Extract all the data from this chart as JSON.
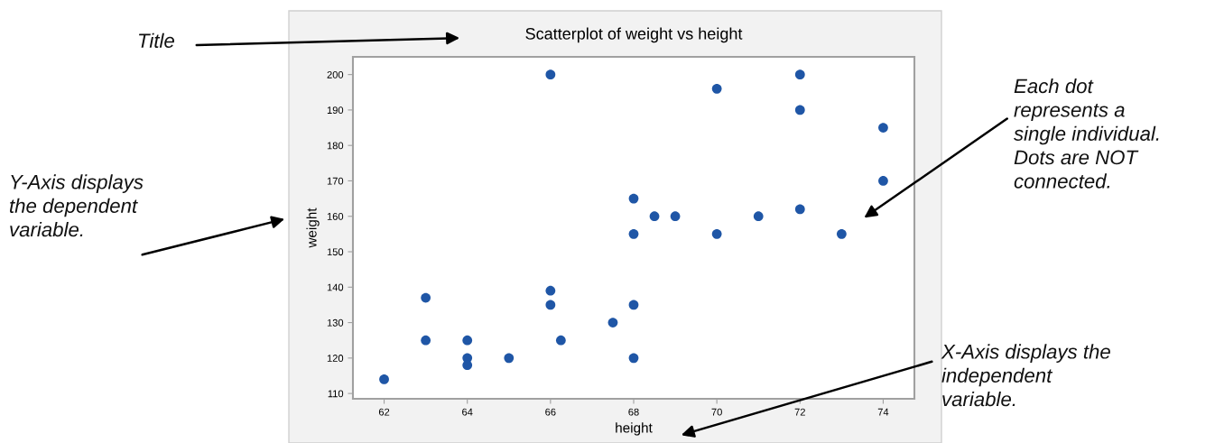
{
  "chart_data": {
    "type": "scatter",
    "title": "Scatterplot of weight vs height",
    "xlabel": "height",
    "ylabel": "weight",
    "series": [
      {
        "color": "#1f56a6",
        "x": [
          62,
          63,
          63,
          64,
          64,
          64,
          65,
          66,
          66,
          66,
          66.25,
          67.5,
          68,
          68,
          68,
          68,
          68.5,
          69,
          70,
          70,
          71,
          72,
          72,
          72,
          73,
          74,
          74
        ],
        "values": [
          114,
          137,
          125,
          125,
          120,
          118,
          120,
          200,
          139,
          135,
          125,
          130,
          165,
          155,
          135,
          120,
          160,
          160,
          196,
          155,
          160,
          200,
          190,
          162,
          155,
          185,
          170
        ]
      }
    ],
    "xlim": [
      61.25,
      74.75
    ],
    "ylim": [
      108.5,
      205
    ],
    "xticks": [
      62,
      64,
      66,
      68,
      70,
      72,
      74
    ],
    "yticks": [
      110,
      120,
      130,
      140,
      150,
      160,
      170,
      180,
      190,
      200
    ],
    "grid": false,
    "marker": "circle",
    "annotations": [
      "Title",
      "Y-Axis displays\nthe dependent\nvariable.",
      "Each dot\nrepresents a\nsingle individual.\nDots are NOT\nconnected.",
      "X-Axis displays the\nindependent\nvariable."
    ]
  }
}
